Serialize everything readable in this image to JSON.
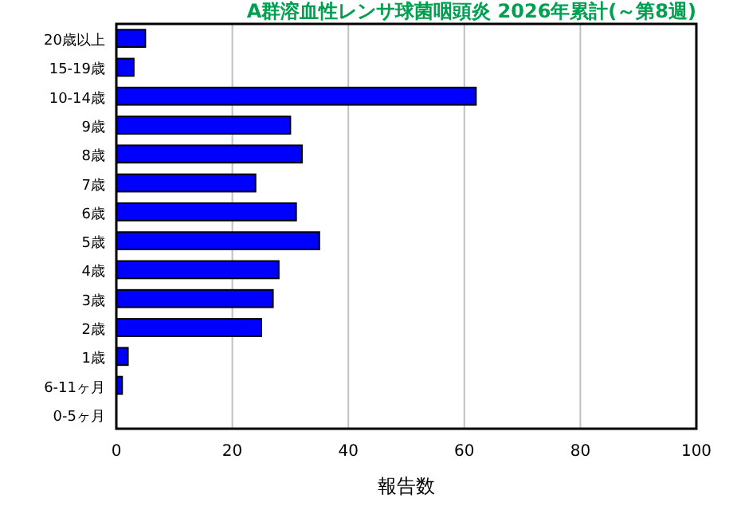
{
  "chart_data": {
    "type": "bar",
    "orientation": "horizontal",
    "title": "A群溶血性レンサ球菌咽頭炎 2026年累計(～第8週)",
    "xlabel": "報告数",
    "categories": [
      "20歳以上",
      "15-19歳",
      "10-14歳",
      "9歳",
      "8歳",
      "7歳",
      "6歳",
      "5歳",
      "4歳",
      "3歳",
      "2歳",
      "1歳",
      "6-11ヶ月",
      "0-5ヶ月"
    ],
    "values": [
      5,
      3,
      62,
      30,
      32,
      24,
      31,
      35,
      28,
      27,
      25,
      2,
      1,
      0
    ],
    "color": "#0000ff",
    "xlim": [
      0,
      100
    ],
    "xticks": [
      0,
      20,
      40,
      60,
      80,
      100
    ],
    "grid": "x"
  }
}
